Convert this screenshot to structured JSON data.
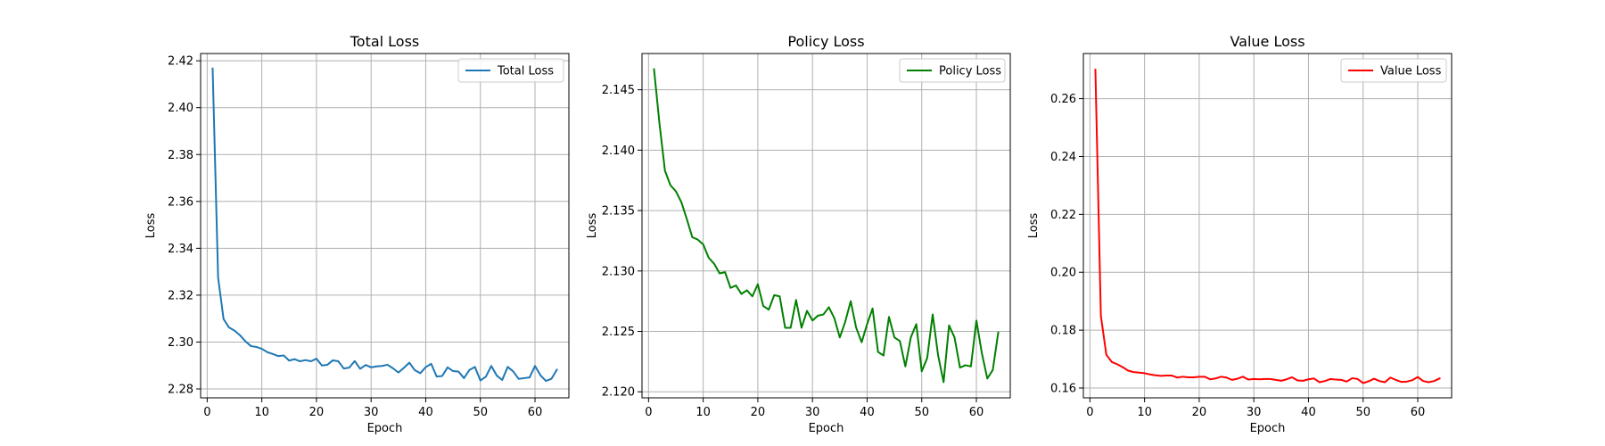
{
  "chart_data": [
    {
      "type": "line",
      "title": "Total Loss",
      "xlabel": "Epoch",
      "ylabel": "Loss",
      "xlim": [
        -1.2,
        66.2
      ],
      "ylim": [
        2.2762,
        2.4231
      ],
      "xticks": [
        0,
        10,
        20,
        30,
        40,
        50,
        60
      ],
      "xtick_labels": [
        "0",
        "10",
        "20",
        "30",
        "40",
        "50",
        "60"
      ],
      "yticks": [
        2.28,
        2.3,
        2.32,
        2.34,
        2.36,
        2.38,
        2.4,
        2.42
      ],
      "ytick_labels": [
        "2.28",
        "2.30",
        "2.32",
        "2.34",
        "2.36",
        "2.38",
        "2.40",
        "2.42"
      ],
      "grid": true,
      "legend": "top-right",
      "color": "#1f77b4",
      "series": [
        {
          "name": "Total Loss",
          "x": [
            1,
            2,
            3,
            4,
            5,
            6,
            7,
            8,
            9,
            10,
            11,
            12,
            13,
            14,
            15,
            16,
            17,
            18,
            19,
            20,
            21,
            22,
            23,
            24,
            25,
            26,
            27,
            28,
            29,
            30,
            31,
            32,
            33,
            34,
            35,
            36,
            37,
            38,
            39,
            40,
            41,
            42,
            43,
            44,
            45,
            46,
            47,
            48,
            49,
            50,
            51,
            52,
            53,
            54,
            55,
            56,
            57,
            58,
            59,
            60,
            61,
            62,
            63,
            64
          ],
          "y": [
            2.4167,
            2.3275,
            2.3098,
            2.3062,
            2.3049,
            2.3029,
            2.3003,
            2.2983,
            2.2979,
            2.2971,
            2.2957,
            2.2949,
            2.294,
            2.2943,
            2.2921,
            2.2927,
            2.2918,
            2.2923,
            2.2918,
            2.2929,
            2.29,
            2.2903,
            2.2922,
            2.2918,
            2.2887,
            2.2891,
            2.2919,
            2.2886,
            2.2902,
            2.2892,
            2.2896,
            2.2898,
            2.2903,
            2.2888,
            2.287,
            2.289,
            2.2912,
            2.288,
            2.2867,
            2.2893,
            2.2907,
            2.2853,
            2.2855,
            2.2892,
            2.2876,
            2.2874,
            2.2846,
            2.2881,
            2.2894,
            2.2836,
            2.2852,
            2.2898,
            2.2857,
            2.2838,
            2.2894,
            2.2875,
            2.2843,
            2.2846,
            2.2849,
            2.2898,
            2.2858,
            2.2834,
            2.2843,
            2.2882
          ]
        }
      ]
    },
    {
      "type": "line",
      "title": "Policy Loss",
      "xlabel": "Epoch",
      "ylabel": "Loss",
      "xlim": [
        -1.2,
        66.2
      ],
      "ylim": [
        2.1195,
        2.148
      ],
      "xticks": [
        0,
        10,
        20,
        30,
        40,
        50,
        60
      ],
      "xtick_labels": [
        "0",
        "10",
        "20",
        "30",
        "40",
        "50",
        "60"
      ],
      "yticks": [
        2.12,
        2.125,
        2.13,
        2.135,
        2.14,
        2.145
      ],
      "ytick_labels": [
        "2.120",
        "2.125",
        "2.130",
        "2.135",
        "2.140",
        "2.145"
      ],
      "grid": true,
      "legend": "top-right",
      "color": "#008000",
      "series": [
        {
          "name": "Policy Loss",
          "x": [
            1,
            2,
            3,
            4,
            5,
            6,
            7,
            8,
            9,
            10,
            11,
            12,
            13,
            14,
            15,
            16,
            17,
            18,
            19,
            20,
            21,
            22,
            23,
            24,
            25,
            26,
            27,
            28,
            29,
            30,
            31,
            32,
            33,
            34,
            35,
            36,
            37,
            38,
            39,
            40,
            41,
            42,
            43,
            44,
            45,
            46,
            47,
            48,
            49,
            50,
            51,
            52,
            53,
            54,
            55,
            56,
            57,
            58,
            59,
            60,
            61,
            62,
            63,
            64
          ],
          "y": [
            2.1467,
            2.1422,
            2.1383,
            2.1371,
            2.1366,
            2.1357,
            2.1343,
            2.1328,
            2.1326,
            2.1322,
            2.1311,
            2.1306,
            2.1298,
            2.1299,
            2.1286,
            2.1288,
            2.1281,
            2.1284,
            2.1279,
            2.1289,
            2.1271,
            2.1268,
            2.128,
            2.1279,
            2.1253,
            2.1253,
            2.1276,
            2.1253,
            2.1267,
            2.1259,
            2.1263,
            2.1264,
            2.127,
            2.1261,
            2.1245,
            2.1258,
            2.1275,
            2.1253,
            2.1241,
            2.1256,
            2.1269,
            2.1233,
            2.123,
            2.1262,
            2.1245,
            2.1242,
            2.1221,
            2.1245,
            2.1256,
            2.1217,
            2.1228,
            2.1264,
            2.123,
            2.1208,
            2.1255,
            2.1245,
            2.122,
            2.1222,
            2.1221,
            2.1259,
            2.1232,
            2.1211,
            2.1218,
            2.1249
          ]
        }
      ]
    },
    {
      "type": "line",
      "title": "Value Loss",
      "xlabel": "Epoch",
      "ylabel": "Loss",
      "xlim": [
        -1.2,
        66.2
      ],
      "ylim": [
        0.1566,
        0.2756
      ],
      "xticks": [
        0,
        10,
        20,
        30,
        40,
        50,
        60
      ],
      "xtick_labels": [
        "0",
        "10",
        "20",
        "30",
        "40",
        "50",
        "60"
      ],
      "yticks": [
        0.16,
        0.18,
        0.2,
        0.22,
        0.24,
        0.26
      ],
      "ytick_labels": [
        "0.16",
        "0.18",
        "0.20",
        "0.22",
        "0.24",
        "0.26"
      ],
      "grid": true,
      "legend": "top-right",
      "color": "#ff0000",
      "series": [
        {
          "name": "Value Loss",
          "x": [
            1,
            2,
            3,
            4,
            5,
            6,
            7,
            8,
            9,
            10,
            11,
            12,
            13,
            14,
            15,
            16,
            17,
            18,
            19,
            20,
            21,
            22,
            23,
            24,
            25,
            26,
            27,
            28,
            29,
            30,
            31,
            32,
            33,
            34,
            35,
            36,
            37,
            38,
            39,
            40,
            41,
            42,
            43,
            44,
            45,
            46,
            47,
            48,
            49,
            50,
            51,
            52,
            53,
            54,
            55,
            56,
            57,
            58,
            59,
            60,
            61,
            62,
            63,
            64
          ],
          "y": [
            0.27,
            0.185,
            0.1715,
            0.169,
            0.1682,
            0.1672,
            0.166,
            0.1655,
            0.1653,
            0.1651,
            0.1647,
            0.1644,
            0.1642,
            0.1643,
            0.1643,
            0.1636,
            0.1639,
            0.1637,
            0.1637,
            0.1639,
            0.1639,
            0.163,
            0.1633,
            0.1639,
            0.1636,
            0.1628,
            0.1632,
            0.1639,
            0.1629,
            0.1631,
            0.163,
            0.1631,
            0.1631,
            0.1628,
            0.1625,
            0.163,
            0.1637,
            0.1626,
            0.1625,
            0.163,
            0.1633,
            0.162,
            0.1624,
            0.1631,
            0.1629,
            0.1628,
            0.1622,
            0.1634,
            0.1631,
            0.1617,
            0.1623,
            0.1632,
            0.1624,
            0.162,
            0.1636,
            0.1628,
            0.1621,
            0.1622,
            0.1627,
            0.1638,
            0.1624,
            0.162,
            0.1624,
            0.1633
          ]
        }
      ]
    }
  ]
}
